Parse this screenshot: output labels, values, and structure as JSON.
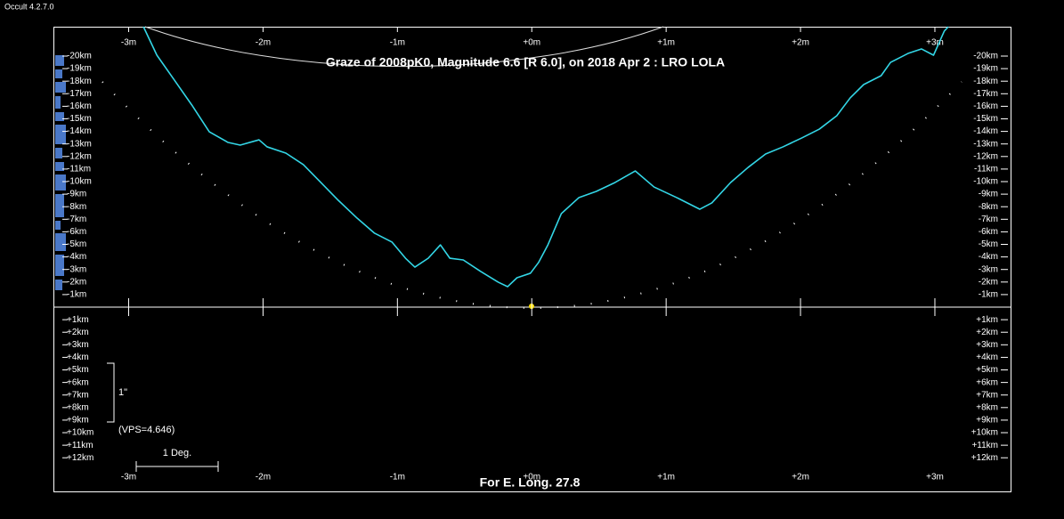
{
  "app_title": "Occult 4.2.7.0",
  "chart_data": {
    "type": "line",
    "title": "Graze of  2008pK0,  Magnitude 6.6 [R 6.0],  on 2018 Apr  2  :  LRO LOLA",
    "footer": "For E. Long. 27.8",
    "annotations": [
      "1\"",
      "(VPS=4.646)",
      "1 Deg."
    ],
    "xlim": [
      -3.56,
      3.57
    ],
    "ylim": [
      14.75,
      -22.34
    ],
    "xticks": [
      {
        "value": -3,
        "label": "-3m"
      },
      {
        "value": -2,
        "label": "-2m"
      },
      {
        "value": -1,
        "label": "-1m"
      },
      {
        "value": 0,
        "label": "+0m"
      },
      {
        "value": 1,
        "label": "+1m"
      },
      {
        "value": 2,
        "label": "+2m"
      },
      {
        "value": 3,
        "label": "+3m"
      }
    ],
    "yticks": [
      {
        "value": -20,
        "label": "-20km"
      },
      {
        "value": -19,
        "label": "-19km"
      },
      {
        "value": -18,
        "label": "-18km"
      },
      {
        "value": -17,
        "label": "-17km"
      },
      {
        "value": -16,
        "label": "-16km"
      },
      {
        "value": -15,
        "label": "-15km"
      },
      {
        "value": -14,
        "label": "-14km"
      },
      {
        "value": -13,
        "label": "-13km"
      },
      {
        "value": -12,
        "label": "-12km"
      },
      {
        "value": -11,
        "label": "-11km"
      },
      {
        "value": -10,
        "label": "-10km"
      },
      {
        "value": -9,
        "label": "-9km"
      },
      {
        "value": -8,
        "label": "-8km"
      },
      {
        "value": -7,
        "label": "-7km"
      },
      {
        "value": -6,
        "label": "-6km"
      },
      {
        "value": -5,
        "label": "-5km"
      },
      {
        "value": -4,
        "label": "-4km"
      },
      {
        "value": -3,
        "label": "-3km"
      },
      {
        "value": -2,
        "label": "-2km"
      },
      {
        "value": -1,
        "label": "-1km"
      },
      {
        "value": 1,
        "label": "+1km"
      },
      {
        "value": 2,
        "label": "+2km"
      },
      {
        "value": 3,
        "label": "+3km"
      },
      {
        "value": 4,
        "label": "+4km"
      },
      {
        "value": 5,
        "label": "+5km"
      },
      {
        "value": 6,
        "label": "+6km"
      },
      {
        "value": 7,
        "label": "+7km"
      },
      {
        "value": 8,
        "label": "+8km"
      },
      {
        "value": 9,
        "label": "+9km"
      },
      {
        "value": 10,
        "label": "+10km"
      },
      {
        "value": 11,
        "label": "+11km"
      },
      {
        "value": 12,
        "label": "+12km"
      }
    ],
    "x": [
      -2.89,
      -2.79,
      -2.66,
      -2.53,
      -2.4,
      -2.26,
      -2.17,
      -2.03,
      -1.97,
      -1.83,
      -1.7,
      -1.57,
      -1.44,
      -1.3,
      -1.17,
      -1.04,
      -0.94,
      -0.87,
      -0.77,
      -0.68,
      -0.61,
      -0.51,
      -0.38,
      -0.25,
      -0.18,
      -0.11,
      -0.01,
      0.05,
      0.12,
      0.22,
      0.35,
      0.48,
      0.62,
      0.77,
      0.91,
      1.08,
      1.25,
      1.34,
      1.48,
      1.61,
      1.74,
      1.87,
      2.01,
      2.14,
      2.27,
      2.37,
      2.47,
      2.6,
      2.67,
      2.8,
      2.9,
      2.99,
      3.07,
      3.1
    ],
    "series": [
      {
        "color": "#33d6e6",
        "values": [
          -22.34,
          -20.07,
          -18.09,
          -16.1,
          -13.97,
          -13.12,
          -12.91,
          -13.33,
          -12.77,
          -12.27,
          -11.35,
          -9.93,
          -8.51,
          -7.09,
          -5.89,
          -5.18,
          -3.9,
          -3.19,
          -3.9,
          -4.96,
          -3.9,
          -3.76,
          -2.84,
          -1.99,
          -1.63,
          -2.34,
          -2.7,
          -3.55,
          -4.96,
          -7.45,
          -8.72,
          -9.22,
          -9.93,
          -10.85,
          -9.57,
          -8.72,
          -7.8,
          -8.3,
          -9.93,
          -11.13,
          -12.2,
          -12.77,
          -13.48,
          -14.18,
          -15.25,
          -16.67,
          -17.73,
          -18.44,
          -19.5,
          -20.21,
          -20.57,
          -20.07,
          -21.99,
          -22.34
        ]
      }
    ]
  }
}
